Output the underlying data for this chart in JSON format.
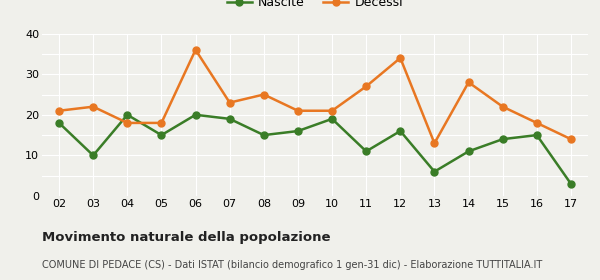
{
  "years": [
    "02",
    "03",
    "04",
    "05",
    "06",
    "07",
    "08",
    "09",
    "10",
    "11",
    "12",
    "13",
    "14",
    "15",
    "16",
    "17"
  ],
  "nascite": [
    18,
    10,
    20,
    15,
    20,
    19,
    15,
    16,
    19,
    11,
    16,
    6,
    11,
    14,
    15,
    3
  ],
  "decessi": [
    21,
    22,
    18,
    18,
    36,
    23,
    25,
    21,
    21,
    27,
    34,
    13,
    28,
    22,
    18,
    14
  ],
  "nascite_color": "#3a7d27",
  "decessi_color": "#e87722",
  "background_color": "#f0f0eb",
  "grid_color": "#ffffff",
  "ylim": [
    0,
    40
  ],
  "yticks": [
    0,
    5,
    10,
    15,
    20,
    25,
    30,
    35,
    40
  ],
  "ytick_labels": [
    "0",
    "",
    "10",
    "",
    "20",
    "",
    "30",
    "",
    "40"
  ],
  "title": "Movimento naturale della popolazione",
  "subtitle": "COMUNE DI PEDACE (CS) - Dati ISTAT (bilancio demografico 1 gen-31 dic) - Elaborazione TUTTITALIA.IT",
  "legend_nascite": "Nascite",
  "legend_decessi": "Decessi",
  "title_fontsize": 9.5,
  "subtitle_fontsize": 7.0,
  "tick_fontsize": 8,
  "legend_fontsize": 9,
  "marker_size": 5,
  "line_width": 1.8
}
